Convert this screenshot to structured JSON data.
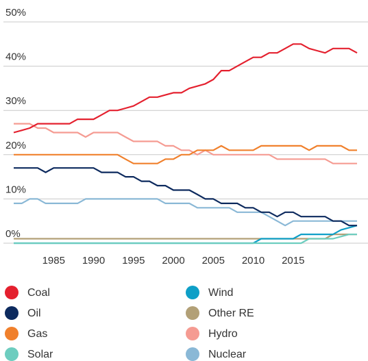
{
  "chart_data": {
    "type": "line",
    "x": [
      1980,
      1981,
      1982,
      1983,
      1984,
      1985,
      1986,
      1987,
      1988,
      1989,
      1990,
      1991,
      1992,
      1993,
      1994,
      1995,
      1996,
      1997,
      1998,
      1999,
      2000,
      2001,
      2002,
      2003,
      2004,
      2005,
      2006,
      2007,
      2008,
      2009,
      2010,
      2011,
      2012,
      2013,
      2014,
      2015,
      2016,
      2017,
      2018,
      2019,
      2020,
      2021,
      2022,
      2023
    ],
    "xlim": [
      1980,
      2023
    ],
    "xticks": [
      1985,
      1990,
      1995,
      2000,
      2005,
      2010,
      2015
    ],
    "ylim": [
      0,
      50
    ],
    "yticks": [
      {
        "value": 0,
        "label": "0%"
      },
      {
        "value": 10,
        "label": "10%"
      },
      {
        "value": 20,
        "label": "20%"
      },
      {
        "value": 30,
        "label": "30%"
      },
      {
        "value": 40,
        "label": "40%"
      },
      {
        "value": 50,
        "label": "50%"
      }
    ],
    "grid": true,
    "series": [
      {
        "name": "Coal",
        "color": "#e4202e",
        "values": [
          25,
          25.5,
          26,
          27,
          27,
          27,
          27,
          27,
          28,
          28,
          28,
          29,
          30,
          30,
          30.5,
          31,
          32,
          33,
          33,
          33.5,
          34,
          34,
          35,
          35.5,
          36,
          37,
          39,
          39,
          40,
          41,
          42,
          42,
          43,
          43,
          44,
          45,
          45,
          44,
          43.5,
          43,
          44,
          44,
          44,
          43
        ]
      },
      {
        "name": "Oil",
        "color": "#0d2a5e",
        "values": [
          17,
          17,
          17,
          17,
          16,
          17,
          17,
          17,
          17,
          17,
          17,
          16,
          16,
          16,
          15,
          15,
          14,
          14,
          13,
          13,
          12,
          12,
          12,
          11,
          10,
          10,
          9,
          9,
          9,
          8,
          8,
          7,
          7,
          6,
          7,
          7,
          6,
          6,
          6,
          6,
          5,
          5,
          4,
          4
        ]
      },
      {
        "name": "Gas",
        "color": "#f0802c",
        "values": [
          20,
          20,
          20,
          20,
          20,
          20,
          20,
          20,
          20,
          20,
          20,
          20,
          20,
          20,
          19,
          18,
          18,
          18,
          18,
          19,
          19,
          20,
          20,
          21,
          21,
          21,
          22,
          21,
          21,
          21,
          21,
          22,
          22,
          22,
          22,
          22,
          22,
          21,
          22,
          22,
          22,
          22,
          21,
          21
        ]
      },
      {
        "name": "Solar",
        "color": "#6dcdbf",
        "values": [
          0,
          0,
          0,
          0,
          0,
          0,
          0,
          0,
          0,
          0,
          0,
          0,
          0,
          0,
          0,
          0,
          0,
          0,
          0,
          0,
          0,
          0,
          0,
          0,
          0,
          0,
          0,
          0,
          0,
          0,
          0,
          0,
          0,
          0,
          0,
          0,
          0,
          1,
          1,
          1,
          1,
          1.5,
          2,
          2
        ]
      },
      {
        "name": "Wind",
        "color": "#0e9fc7",
        "values": [
          0,
          0,
          0,
          0,
          0,
          0,
          0,
          0,
          0,
          0,
          0,
          0,
          0,
          0,
          0,
          0,
          0,
          0,
          0,
          0,
          0,
          0,
          0,
          0,
          0,
          0,
          0,
          0,
          0,
          0,
          0,
          1,
          1,
          1,
          1,
          1,
          2,
          2,
          2,
          2,
          2,
          3,
          3.5,
          4
        ]
      },
      {
        "name": "Other RE",
        "color": "#b2a077",
        "values": [
          1,
          1,
          1,
          1,
          1,
          1,
          1,
          1,
          1,
          1,
          1,
          1,
          1,
          1,
          1,
          1,
          1,
          1,
          1,
          1,
          1,
          1,
          1,
          1,
          1,
          1,
          1,
          1,
          1,
          1,
          1,
          1,
          1,
          1,
          1,
          1,
          1,
          1,
          1,
          1,
          2,
          2,
          2,
          2
        ]
      },
      {
        "name": "Hydro",
        "color": "#f59b92",
        "values": [
          27,
          27,
          27,
          26,
          26,
          25,
          25,
          25,
          25,
          24,
          25,
          25,
          25,
          25,
          24,
          23,
          23,
          23,
          23,
          22,
          22,
          21,
          21,
          20,
          21,
          20,
          20,
          20,
          20,
          20,
          20,
          20,
          20,
          19,
          19,
          19,
          19,
          19,
          19,
          19,
          18,
          18,
          18,
          18
        ]
      },
      {
        "name": "Nuclear",
        "color": "#8ab8d6",
        "values": [
          9,
          9,
          10,
          10,
          9,
          9,
          9,
          9,
          9,
          10,
          10,
          10,
          10,
          10,
          10,
          10,
          10,
          10,
          10,
          9,
          9,
          9,
          9,
          8,
          8,
          8,
          8,
          8,
          7,
          7,
          7,
          7,
          6,
          5,
          4,
          5,
          5,
          5,
          5,
          5,
          5,
          5,
          5,
          5
        ]
      }
    ]
  }
}
